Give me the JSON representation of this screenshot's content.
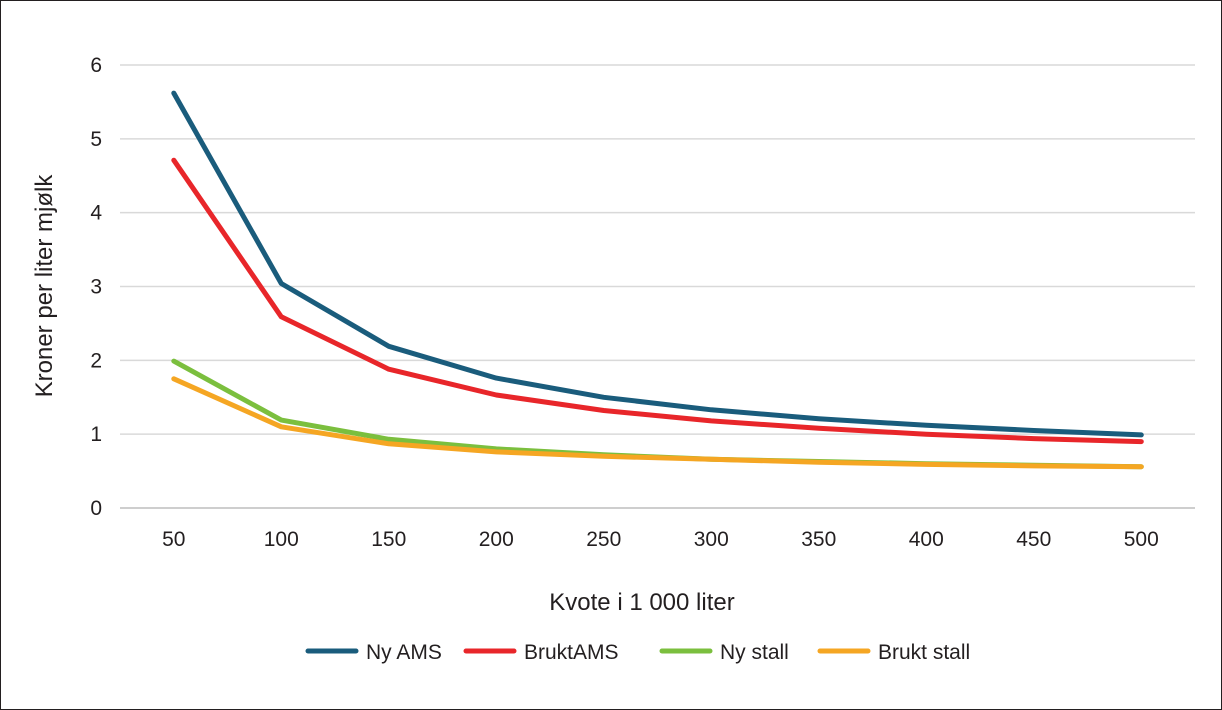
{
  "chart_data": {
    "type": "line",
    "title": "",
    "xlabel": "Kvote i 1 000 liter",
    "ylabel": "Kroner per liter mjølk",
    "x": [
      50,
      100,
      150,
      200,
      250,
      300,
      350,
      400,
      450,
      500
    ],
    "x_tick_labels": [
      "50",
      "100",
      "150",
      "200",
      "250",
      "300",
      "350",
      "400",
      "450",
      "500"
    ],
    "y_tick_labels": [
      "0",
      "1",
      "2",
      "3",
      "4",
      "5",
      "6"
    ],
    "ylim": [
      0,
      6
    ],
    "grid": "horizontal",
    "legend_position": "bottom",
    "series": [
      {
        "name": "Ny AMS",
        "color": "#1a5c7c",
        "values": [
          5.62,
          3.04,
          2.19,
          1.76,
          1.5,
          1.33,
          1.21,
          1.12,
          1.05,
          0.99
        ]
      },
      {
        "name": "BruktAMS",
        "color": "#e8262a",
        "values": [
          4.71,
          2.59,
          1.88,
          1.53,
          1.32,
          1.18,
          1.08,
          1.0,
          0.94,
          0.9
        ]
      },
      {
        "name": "Ny stall",
        "color": "#7bbf3e",
        "values": [
          1.99,
          1.19,
          0.93,
          0.8,
          0.72,
          0.66,
          0.63,
          0.6,
          0.58,
          0.56
        ]
      },
      {
        "name": "Brukt stall",
        "color": "#f5a623",
        "values": [
          1.75,
          1.1,
          0.87,
          0.76,
          0.7,
          0.66,
          0.62,
          0.59,
          0.57,
          0.56
        ]
      }
    ]
  }
}
